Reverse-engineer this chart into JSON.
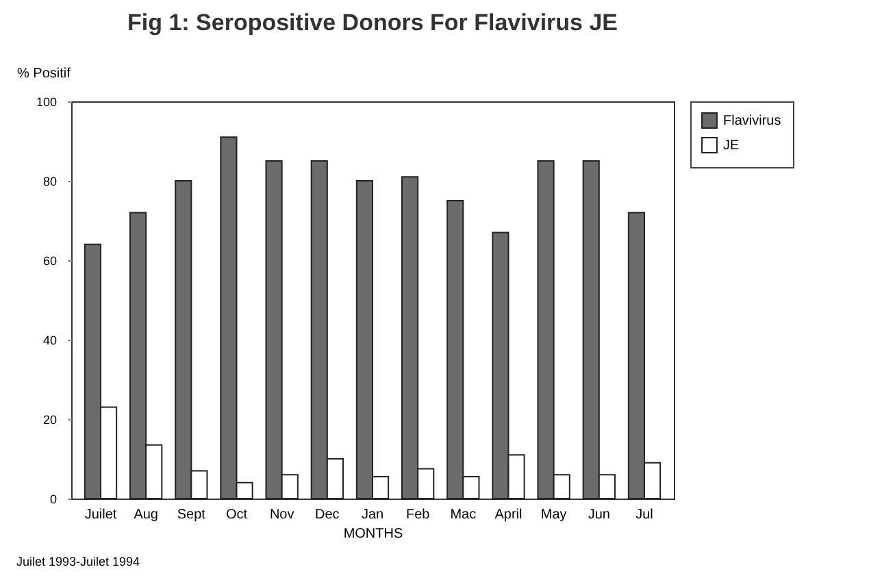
{
  "chart_data": {
    "type": "bar",
    "title": "Fig 1: Seropositive Donors For Flavivirus JE",
    "categories": [
      "Juilet",
      "Aug",
      "Sept",
      "Oct",
      "Nov",
      "Dec",
      "Jan",
      "Feb",
      "Mac",
      "April",
      "May",
      "Jun",
      "Jul"
    ],
    "series": [
      {
        "name": "Flavivirus",
        "color": "#6b6b6b",
        "values": [
          64,
          72,
          80,
          91,
          85,
          85,
          80,
          81,
          75,
          67,
          85,
          85,
          72
        ]
      },
      {
        "name": "JE",
        "color": "#ffffff",
        "values": [
          23,
          13.5,
          7,
          4,
          6,
          10,
          5.5,
          7.5,
          5.5,
          11,
          6,
          6,
          9
        ]
      }
    ],
    "xlabel": "MONTHS",
    "ylabel": "% Positif",
    "ylim": [
      0,
      100
    ],
    "yticks": [
      0,
      20,
      40,
      60,
      80,
      100
    ],
    "annotations": [
      "Juilet 1993-Juilet 1994"
    ],
    "grid": false,
    "legend": "top right"
  }
}
